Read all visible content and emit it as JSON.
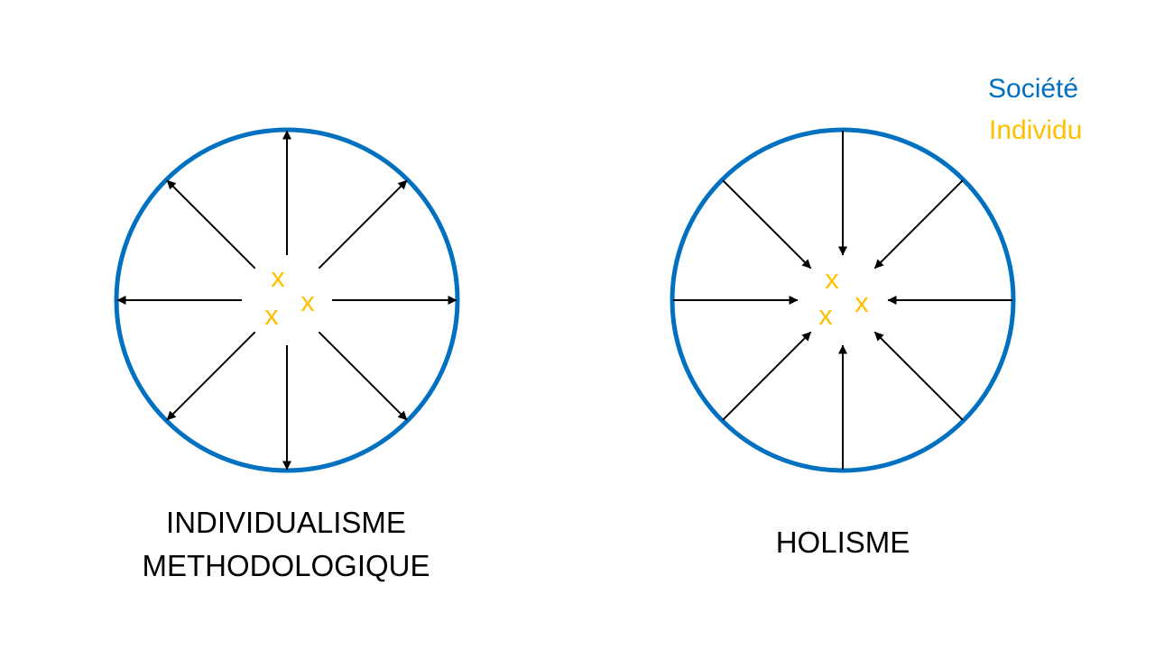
{
  "colors": {
    "society": "#0070C0",
    "individual": "#FFC000",
    "arrow": "#000000"
  },
  "legend": {
    "society_label": "Société",
    "individual_label": "Individu"
  },
  "individual_mark": "x",
  "diagrams": [
    {
      "id": "individualisme",
      "caption_lines": [
        "INDIVIDUALISME",
        "METHODOLOGIQUE"
      ],
      "arrow_direction": "outward",
      "arrow_count": 8
    },
    {
      "id": "holisme",
      "caption_lines": [
        "HOLISME"
      ],
      "arrow_direction": "inward",
      "arrow_count": 8
    }
  ]
}
